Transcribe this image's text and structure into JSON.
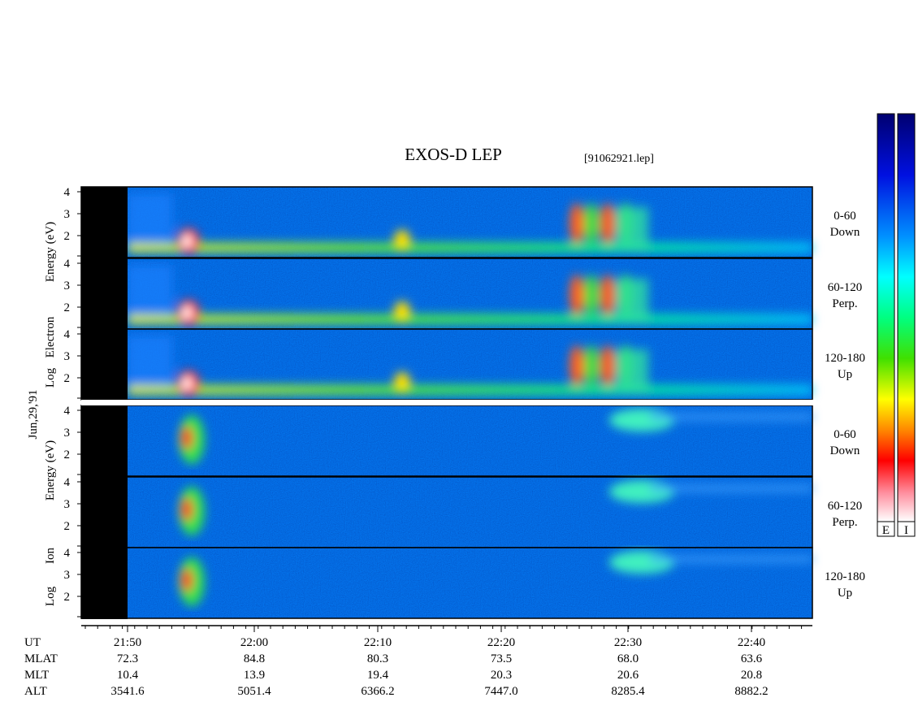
{
  "title": "EXOS-D LEP",
  "file": "[91062921.lep]",
  "date": "Jun,29,'91",
  "electron": {
    "axis_label": [
      "Log",
      "Electron",
      "Energy (eV)"
    ],
    "panels": [
      {
        "name": "0-60",
        "direction": "Down",
        "yticks": [
          "4",
          "3",
          "2"
        ]
      },
      {
        "name": "60-120",
        "direction": "Perp.",
        "yticks": [
          "4",
          "3",
          "2"
        ]
      },
      {
        "name": "120-180",
        "direction": "Up",
        "yticks": [
          "4",
          "3",
          "2"
        ]
      }
    ]
  },
  "ion": {
    "axis_label": [
      "Log",
      "Ion",
      "Energy (eV)"
    ],
    "panels": [
      {
        "name": "0-60",
        "direction": "Down",
        "yticks": [
          "4",
          "3",
          "2"
        ]
      },
      {
        "name": "60-120",
        "direction": "Perp.",
        "yticks": [
          "4",
          "3",
          "2"
        ]
      },
      {
        "name": "120-180",
        "direction": "Up",
        "yticks": [
          "4",
          "3",
          "2"
        ]
      }
    ]
  },
  "time_axis": {
    "rows": [
      {
        "name": "UT",
        "values": [
          "21:50",
          "22:00",
          "22:10",
          "22:20",
          "22:30",
          "22:40"
        ]
      },
      {
        "name": "MLAT",
        "values": [
          "72.3",
          "84.8",
          "80.3",
          "73.5",
          "68.0",
          "63.6"
        ]
      },
      {
        "name": "MLT",
        "values": [
          "10.4",
          "13.9",
          "19.4",
          "20.3",
          "20.6",
          "20.8"
        ]
      },
      {
        "name": "ALT",
        "values": [
          "3541.6",
          "5051.4",
          "6366.2",
          "7447.0",
          "8285.4",
          "8882.2"
        ]
      }
    ]
  },
  "colorbars": [
    "E",
    "I"
  ]
}
